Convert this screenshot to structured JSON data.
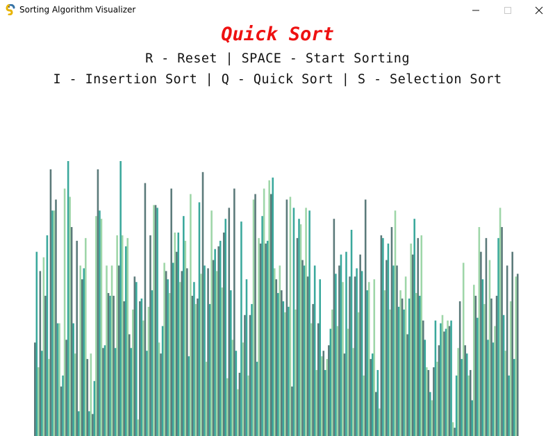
{
  "window": {
    "title": "Sorting Algorithm Visualizer",
    "icon": "pygame-snake-icon",
    "controls": {
      "minimize": "─",
      "maximize": "☐",
      "close": "✕"
    }
  },
  "header": {
    "algorithm_name": "Quick Sort",
    "algorithm_color": "#ee1111",
    "controls_line1": "R - Reset | SPACE - Start Sorting",
    "controls_line2": "I - Insertion Sort | Q - Quick Sort | S - Selection Sort"
  },
  "visualization": {
    "description_colors": [
      "#5b7a7a",
      "#3aa89c",
      "#9ed6a8"
    ],
    "value_max": 100,
    "values": [
      34,
      67,
      25,
      60,
      31,
      65,
      51,
      73,
      28,
      97,
      82,
      82,
      86,
      41,
      41,
      18,
      22,
      90,
      35,
      100,
      87,
      76,
      41,
      30,
      71,
      9,
      62,
      57,
      61,
      72,
      28,
      9,
      30,
      8,
      20,
      80,
      97,
      82,
      79,
      32,
      33,
      62,
      52,
      51,
      62,
      51,
      32,
      73,
      62,
      100,
      73,
      49,
      69,
      72,
      37,
      32,
      46,
      58,
      56,
      6,
      49,
      50,
      42,
      92,
      31,
      47,
      73,
      53,
      84,
      84,
      83,
      34,
      30,
      40,
      63,
      60,
      57,
      52,
      90,
      63,
      74,
      67,
      74,
      56,
      60,
      80,
      71,
      61,
      29,
      88,
      51,
      56,
      48,
      50,
      85,
      59,
      96,
      62,
      27,
      61,
      48,
      82,
      64,
      68,
      60,
      69,
      71,
      54,
      74,
      79,
      21,
      83,
      53,
      35,
      90,
      31,
      17,
      23,
      78,
      34,
      44,
      57,
      22,
      44,
      48,
      86,
      88,
      27,
      72,
      70,
      80,
      90,
      70,
      71,
      93,
      88,
      94,
      61,
      57,
      52,
      62,
      53,
      49,
      45,
      86,
      47,
      87,
      18,
      83,
      46,
      72,
      79,
      77,
      64,
      62,
      83,
      58,
      82,
      41,
      48,
      62,
      24,
      41,
      57,
      29,
      31,
      24,
      28,
      33,
      39,
      46,
      79,
      59,
      40,
      62,
      66,
      56,
      30,
      67,
      39,
      58,
      75,
      32,
      58,
      61,
      45,
      66,
      60,
      22,
      86,
      53,
      56,
      28,
      30,
      57,
      16,
      24,
      10,
      73,
      72,
      53,
      64,
      70,
      46,
      76,
      62,
      82,
      62,
      47,
      53,
      50,
      46,
      58,
      37,
      50,
      70,
      66,
      79,
      52,
      72,
      51,
      73,
      42,
      35,
      25,
      24,
      16,
      13,
      25,
      42,
      27,
      33,
      41,
      44,
      38,
      39,
      42,
      40,
      42,
      5,
      3,
      22,
      32,
      49,
      28,
      63,
      33,
      30,
      22,
      24,
      13,
      55,
      51,
      43,
      76,
      67,
      57,
      48,
      72,
      35,
      64,
      50,
      34,
      40,
      51,
      72,
      83,
      76,
      44,
      31,
      62,
      22,
      49,
      67,
      28,
      58,
      59,
      0
    ]
  }
}
